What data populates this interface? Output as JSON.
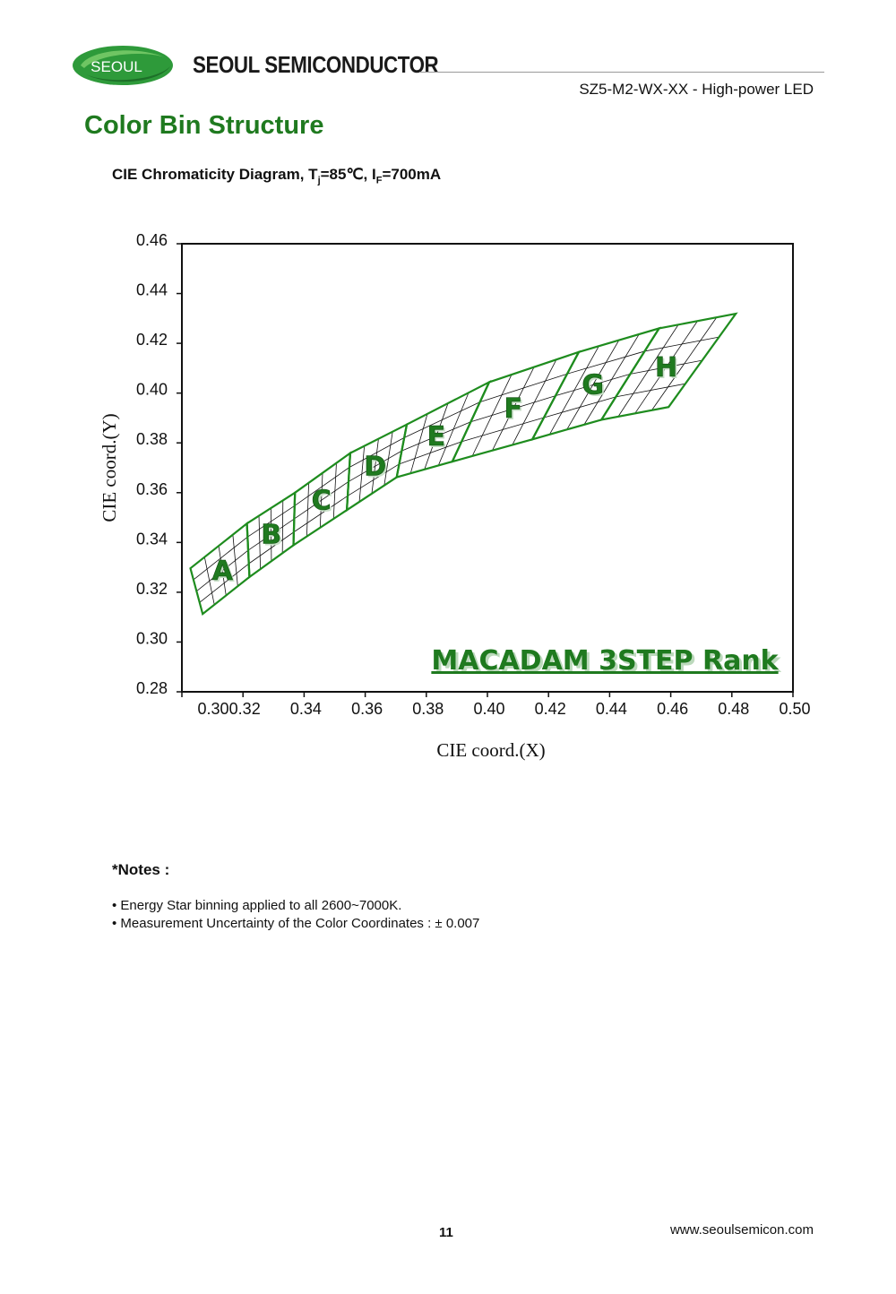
{
  "header": {
    "logo_text": "SEOUL",
    "brand": "SEOUL SEMICONDUCTOR",
    "doc_id": "SZ5-M2-WX-XX - High-power LED"
  },
  "section_title": "Color Bin Structure",
  "chart_title": {
    "prefix": "CIE Chromaticity Diagram, T",
    "sub_j": "j",
    "mid": "=85℃, I",
    "sub_f": "F",
    "suffix": "=700mA"
  },
  "chart_data": {
    "type": "area",
    "xlabel": "CIE coord.(X)",
    "ylabel": "CIE coord.(Y)",
    "xlim": [
      0.3,
      0.5
    ],
    "ylim": [
      0.28,
      0.46
    ],
    "x_ticks": [
      "0.30",
      "0.32",
      "0.34",
      "0.36",
      "0.38",
      "0.40",
      "0.42",
      "0.44",
      "0.46",
      "0.48",
      "0.50"
    ],
    "y_ticks": [
      "0.46",
      "0.44",
      "0.42",
      "0.40",
      "0.38",
      "0.36",
      "0.34",
      "0.32",
      "0.30",
      "0.28"
    ],
    "grid": false,
    "annotation": "MACADAM 3STEP Rank",
    "colors": {
      "bin_stroke": "#1e8c1e",
      "bin_label": "#1f7a1f",
      "mesh": "#111111"
    },
    "bins": [
      {
        "name": "A",
        "polygon": [
          [
            0.3028,
            0.3296
          ],
          [
            0.3213,
            0.3476
          ],
          [
            0.3221,
            0.3261
          ],
          [
            0.3068,
            0.3113
          ]
        ]
      },
      {
        "name": "B",
        "polygon": [
          [
            0.3213,
            0.3476
          ],
          [
            0.337,
            0.36
          ],
          [
            0.3365,
            0.3389
          ],
          [
            0.3221,
            0.3261
          ]
        ]
      },
      {
        "name": "C",
        "polygon": [
          [
            0.337,
            0.36
          ],
          [
            0.3551,
            0.3759
          ],
          [
            0.354,
            0.353
          ],
          [
            0.3365,
            0.3389
          ]
        ]
      },
      {
        "name": "D",
        "polygon": [
          [
            0.3551,
            0.3759
          ],
          [
            0.3736,
            0.3874
          ],
          [
            0.3703,
            0.3662
          ],
          [
            0.354,
            0.353
          ]
        ]
      },
      {
        "name": "E",
        "polygon": [
          [
            0.3736,
            0.3874
          ],
          [
            0.4006,
            0.4044
          ],
          [
            0.3885,
            0.3725
          ],
          [
            0.3703,
            0.3662
          ]
        ]
      },
      {
        "name": "F",
        "polygon": [
          [
            0.4006,
            0.4044
          ],
          [
            0.4299,
            0.4165
          ],
          [
            0.4147,
            0.3814
          ],
          [
            0.3885,
            0.3725
          ]
        ]
      },
      {
        "name": "G",
        "polygon": [
          [
            0.4299,
            0.4165
          ],
          [
            0.4562,
            0.426
          ],
          [
            0.4373,
            0.3893
          ],
          [
            0.4147,
            0.3814
          ]
        ]
      },
      {
        "name": "H",
        "polygon": [
          [
            0.4562,
            0.426
          ],
          [
            0.4813,
            0.4319
          ],
          [
            0.4593,
            0.3944
          ],
          [
            0.4373,
            0.3893
          ]
        ]
      }
    ]
  },
  "notes": {
    "title": "*Notes :",
    "items": [
      "• Energy Star binning applied to all 2600~7000K.",
      "• Measurement Uncertainty of the Color Coordinates : ± 0.007"
    ]
  },
  "footer": {
    "page_number": "11",
    "website": "www.seoulsemicon.com"
  }
}
